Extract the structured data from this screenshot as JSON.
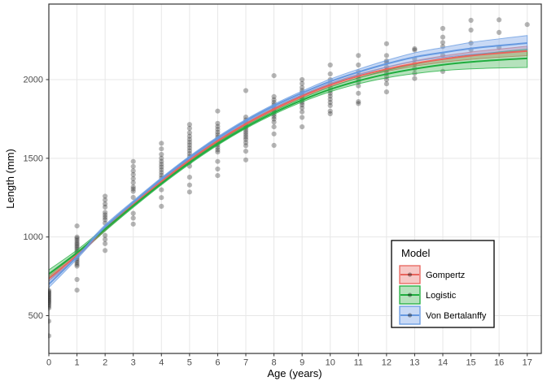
{
  "chart_data": {
    "type": "scatter",
    "title": "",
    "xlabel": "Age (years)",
    "ylabel": "Length (mm)",
    "xlim": [
      0,
      17.5
    ],
    "ylim": [
      260,
      2480
    ],
    "x_ticks": [
      0,
      1,
      2,
      3,
      4,
      5,
      6,
      7,
      8,
      9,
      10,
      11,
      12,
      13,
      14,
      15,
      16,
      17
    ],
    "y_ticks": [
      500,
      1000,
      1500,
      2000
    ],
    "grid": "major-only",
    "grid_color": "#e7e7e7",
    "panel_border_color": "#333333",
    "point_color": "#1b1b1b",
    "point_opacity": 0.32,
    "legend": {
      "title": "Model",
      "position": "inside-bottom-right",
      "border_color": "#000000",
      "background": "#ffffff"
    },
    "points": [
      {
        "age": 0,
        "lengths": [
          660,
          652,
          644,
          636,
          628,
          620,
          612,
          604,
          596,
          588,
          580,
          570,
          560,
          548,
          465,
          372
        ]
      },
      {
        "age": 1,
        "lengths": [
          1070,
          1000,
          990,
          978,
          966,
          955,
          944,
          933,
          922,
          910,
          898,
          886,
          874,
          862,
          850,
          838,
          826,
          815,
          730,
          662
        ]
      },
      {
        "age": 2,
        "lengths": [
          1259,
          1235,
          1210,
          1190,
          1156,
          1140,
          1125,
          1110,
          1088,
          1010,
          985,
          958,
          914
        ]
      },
      {
        "age": 3,
        "lengths": [
          1480,
          1448,
          1420,
          1396,
          1370,
          1345,
          1318,
          1305,
          1290,
          1251,
          1150,
          1120,
          1082
        ]
      },
      {
        "age": 4,
        "lengths": [
          1595,
          1560,
          1525,
          1500,
          1480,
          1462,
          1445,
          1428,
          1410,
          1392,
          1375,
          1300,
          1250,
          1195
        ]
      },
      {
        "age": 5,
        "lengths": [
          1715,
          1690,
          1662,
          1640,
          1620,
          1602,
          1584,
          1566,
          1548,
          1530,
          1512,
          1494,
          1476,
          1450,
          1380,
          1330,
          1286
        ]
      },
      {
        "age": 6,
        "lengths": [
          1800,
          1722,
          1702,
          1684,
          1666,
          1650,
          1634,
          1618,
          1602,
          1586,
          1570,
          1554,
          1540,
          1480,
          1432,
          1390
        ]
      },
      {
        "age": 7,
        "lengths": [
          1930,
          1762,
          1744,
          1727,
          1711,
          1695,
          1680,
          1665,
          1650,
          1635,
          1620,
          1600,
          1580,
          1545,
          1490
        ]
      },
      {
        "age": 8,
        "lengths": [
          2025,
          1892,
          1872,
          1855,
          1840,
          1825,
          1810,
          1795,
          1780,
          1765,
          1750,
          1730,
          1700,
          1655,
          1582
        ]
      },
      {
        "age": 9,
        "lengths": [
          2000,
          1975,
          1950,
          1930,
          1915,
          1900,
          1885,
          1870,
          1855,
          1840,
          1820,
          1795,
          1760,
          1700
        ]
      },
      {
        "age": 10,
        "lengths": [
          2093,
          2036,
          2000,
          1975,
          1950,
          1930,
          1913,
          1895,
          1875,
          1855,
          1835,
          1800,
          1783
        ]
      },
      {
        "age": 11,
        "lengths": [
          2153,
          2093,
          2050,
          2025,
          2005,
          1985,
          1960,
          1913,
          1860,
          1848
        ]
      },
      {
        "age": 12,
        "lengths": [
          2228,
          2153,
          2119,
          2108,
          2080,
          2060,
          2040,
          2020,
          2000,
          1973,
          1922
        ]
      },
      {
        "age": 13,
        "lengths": [
          2196,
          2188,
          2130,
          2100,
          2070,
          2040,
          2007
        ]
      },
      {
        "age": 14,
        "lengths": [
          2325,
          2270,
          2236,
          2210,
          2155,
          2052
        ]
      },
      {
        "age": 15,
        "lengths": [
          2377,
          2315,
          2232,
          2190
        ]
      },
      {
        "age": 16,
        "lengths": [
          2380,
          2300,
          2205
        ]
      },
      {
        "age": 17,
        "lengths": [
          2350
        ]
      }
    ],
    "series": [
      {
        "name": "Gompertz",
        "color": "#E8645C",
        "fill": "rgba(235,110,104,0.38)",
        "x": [
          0,
          1,
          2,
          3,
          4,
          5,
          6,
          7,
          8,
          9,
          10,
          11,
          12,
          13,
          14,
          15,
          16,
          17
        ],
        "y": [
          735,
          885,
          1050,
          1205,
          1352,
          1488,
          1610,
          1718,
          1812,
          1895,
          1966,
          2022,
          2066,
          2102,
          2130,
          2152,
          2168,
          2182
        ],
        "ribbon_halfwidth": [
          16,
          12,
          10,
          9,
          8,
          8,
          8,
          8,
          8,
          9,
          10,
          12,
          14,
          17,
          20,
          23,
          26,
          30
        ]
      },
      {
        "name": "Logistic",
        "color": "#1FAD3E",
        "fill": "rgba(60,180,80,0.38)",
        "x": [
          0,
          1,
          2,
          3,
          4,
          5,
          6,
          7,
          8,
          9,
          10,
          11,
          12,
          13,
          14,
          15,
          16,
          17
        ],
        "y": [
          765,
          900,
          1050,
          1198,
          1340,
          1472,
          1592,
          1698,
          1790,
          1870,
          1938,
          1992,
          2035,
          2068,
          2094,
          2112,
          2125,
          2135
        ],
        "ribbon_halfwidth": [
          26,
          17,
          12,
          10,
          9,
          9,
          9,
          9,
          10,
          12,
          15,
          19,
          24,
          30,
          37,
          44,
          51,
          58
        ]
      },
      {
        "name": "Von Bertalanffy",
        "color": "#6699E0",
        "fill": "rgba(125,165,230,0.42)",
        "x": [
          0,
          1,
          2,
          3,
          4,
          5,
          6,
          7,
          8,
          9,
          10,
          11,
          12,
          13,
          14,
          15,
          16,
          17
        ],
        "y": [
          700,
          875,
          1065,
          1220,
          1368,
          1505,
          1628,
          1738,
          1833,
          1915,
          1988,
          2048,
          2100,
          2143,
          2172,
          2198,
          2216,
          2232
        ],
        "ribbon_halfwidth": [
          22,
          15,
          12,
          10,
          9,
          9,
          9,
          9,
          10,
          12,
          15,
          18,
          22,
          27,
          32,
          38,
          43,
          48
        ]
      }
    ]
  }
}
